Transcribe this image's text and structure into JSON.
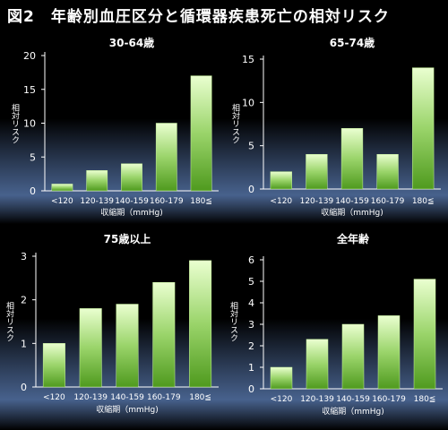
{
  "title": "図2　年齢別血圧区分と循環器疾患死亡の相対リスク",
  "colors": {
    "background": "#000000",
    "bar_light": "#eaffd0",
    "bar_dark": "#4f9a1e",
    "panel_glow": "#4f6c9c"
  },
  "chart_data": [
    {
      "type": "bar",
      "title": "30-64歳",
      "categories": [
        "<120",
        "120-139",
        "140-159",
        "160-179",
        "180≦"
      ],
      "values": [
        1,
        3,
        4,
        10,
        17
      ],
      "ylabel": "相対リスク",
      "xlabel": "収縮期（mmHg)",
      "ylim": [
        0,
        20
      ],
      "yticks": [
        0,
        5,
        10,
        15,
        20
      ],
      "grid": false
    },
    {
      "type": "bar",
      "title": "65-74歳",
      "categories": [
        "<120",
        "120-139",
        "140-159",
        "160-179",
        "180≦"
      ],
      "values": [
        2,
        4,
        7,
        4,
        14
      ],
      "ylabel": "相対リスク",
      "xlabel": "収縮期（mmHg)",
      "ylim": [
        0,
        15
      ],
      "yticks": [
        0,
        5,
        10,
        15
      ],
      "grid": false
    },
    {
      "type": "bar",
      "title": "75歳以上",
      "categories": [
        "<120",
        "120-139",
        "140-159",
        "160-179",
        "180≦"
      ],
      "values": [
        1.0,
        1.8,
        1.9,
        2.4,
        2.9
      ],
      "ylabel": "相対リスク",
      "xlabel": "収縮期（mmHg)",
      "ylim": [
        0,
        3
      ],
      "yticks": [
        0,
        1,
        2,
        3
      ],
      "grid": false
    },
    {
      "type": "bar",
      "title": "全年齢",
      "categories": [
        "<120",
        "120-139",
        "140-159",
        "160-179",
        "180≦"
      ],
      "values": [
        1.0,
        2.3,
        3.0,
        3.4,
        5.1
      ],
      "ylabel": "相対リスク",
      "xlabel": "収縮期（mmHg)",
      "ylim": [
        0,
        6
      ],
      "yticks": [
        0,
        1,
        2,
        3,
        4,
        5,
        6
      ],
      "grid": false
    }
  ]
}
